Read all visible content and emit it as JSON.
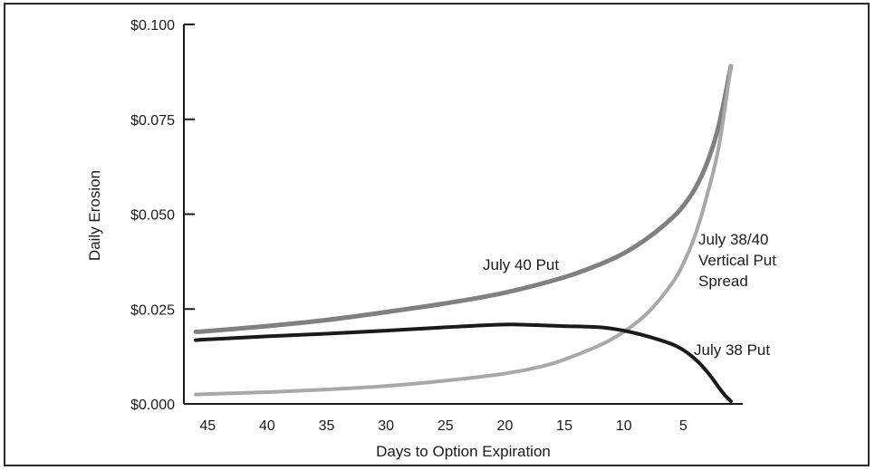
{
  "chart_data": {
    "type": "line",
    "title": "",
    "xlabel": "Days to Option Expiration",
    "ylabel": "Daily Erosion",
    "xlim": [
      47,
      0
    ],
    "ylim": [
      0,
      0.1
    ],
    "x_ticks": [
      45,
      40,
      35,
      30,
      25,
      20,
      15,
      10,
      5
    ],
    "x_tick_labels": [
      "45",
      "40",
      "35",
      "30",
      "25",
      "20",
      "15",
      "10",
      "5"
    ],
    "y_ticks": [
      0,
      0.025,
      0.05,
      0.075,
      0.1
    ],
    "y_tick_labels": [
      "$0.000",
      "$0.025",
      "$0.050",
      "$0.075",
      "$0.100"
    ],
    "grid": false,
    "legend": "none",
    "series": [
      {
        "name": "July 40 Put",
        "color": "#808080",
        "x": [
          46,
          45,
          40,
          35,
          30,
          25,
          20,
          15,
          12,
          10,
          8,
          6,
          5,
          4,
          3,
          2,
          1
        ],
        "y": [
          0.019,
          0.0192,
          0.0205,
          0.0221,
          0.0242,
          0.0265,
          0.0293,
          0.0334,
          0.0368,
          0.0397,
          0.0437,
          0.0488,
          0.0522,
          0.0568,
          0.0635,
          0.0735,
          0.089
        ]
      },
      {
        "name": "July 38/40 Vertical Put Spread",
        "color": "#a8a8a8",
        "x": [
          46,
          45,
          40,
          35,
          30,
          25,
          20,
          17,
          15,
          12,
          10,
          8,
          6,
          5,
          4,
          3,
          2,
          1
        ],
        "y": [
          0.0025,
          0.0026,
          0.0031,
          0.0038,
          0.0047,
          0.0061,
          0.008,
          0.0098,
          0.0117,
          0.0155,
          0.019,
          0.024,
          0.0315,
          0.037,
          0.0445,
          0.055,
          0.068,
          0.089
        ]
      },
      {
        "name": "July 38 Put",
        "color": "#1a1a1a",
        "x": [
          46,
          45,
          40,
          35,
          30,
          25,
          20,
          18,
          15,
          12,
          10,
          8,
          6,
          5,
          4,
          3,
          2,
          1.5,
          1
        ],
        "y": [
          0.0168,
          0.017,
          0.0178,
          0.0185,
          0.0193,
          0.0202,
          0.0209,
          0.0208,
          0.0205,
          0.0202,
          0.0193,
          0.0178,
          0.0158,
          0.0142,
          0.0118,
          0.0085,
          0.0043,
          0.0023,
          0.0007
        ]
      }
    ],
    "annotations": [
      {
        "lines": [
          "July 40 Put"
        ]
      },
      {
        "lines": [
          "July 38/40",
          "Vertical Put",
          "Spread"
        ]
      },
      {
        "lines": [
          "July 38 Put"
        ]
      }
    ]
  }
}
